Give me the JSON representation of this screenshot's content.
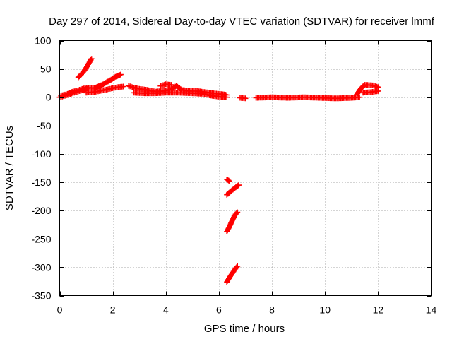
{
  "chart_data": {
    "type": "scatter",
    "title": "Day 297 of 2014, Sidereal Day-to-day VTEC variation (SDTVAR) for receiver lmmf",
    "xlabel": "GPS time / hours",
    "ylabel": "SDTVAR / TECUs",
    "xlim": [
      0,
      14
    ],
    "ylim": [
      -350,
      100
    ],
    "xticks": [
      0,
      2,
      4,
      6,
      8,
      10,
      12,
      14
    ],
    "yticks": [
      100,
      50,
      0,
      -50,
      -100,
      -150,
      -200,
      -250,
      -300,
      -350
    ],
    "grid": true,
    "marker": "+",
    "colors": {
      "points": "#ff0000",
      "grid": "#a8a8a8",
      "frame": "#000000"
    },
    "series": [
      {
        "name": "SDTVAR",
        "segments": [
          [
            [
              0,
              0
            ],
            [
              0.3,
              4
            ],
            [
              0.6,
              9
            ],
            [
              0.9,
              13
            ],
            [
              1.1,
              17
            ],
            [
              1.3,
              16
            ],
            [
              1.6,
              22
            ],
            [
              1.9,
              30
            ],
            [
              2.1,
              36
            ],
            [
              2.3,
              40
            ]
          ],
          [
            [
              0.7,
              35
            ],
            [
              0.85,
              42
            ],
            [
              1.0,
              52
            ],
            [
              1.1,
              60
            ],
            [
              1.2,
              68
            ]
          ],
          [
            [
              0.05,
              3
            ],
            [
              0.3,
              6
            ],
            [
              0.5,
              10
            ],
            [
              0.8,
              14
            ],
            [
              1.0,
              17
            ]
          ],
          [
            [
              1.0,
              8
            ],
            [
              1.4,
              10
            ],
            [
              1.8,
              14
            ],
            [
              2.2,
              18
            ],
            [
              2.4,
              19
            ]
          ],
          [
            [
              2.6,
              20
            ],
            [
              2.8,
              17
            ],
            [
              3.0,
              15
            ],
            [
              3.3,
              13
            ],
            [
              3.6,
              10
            ],
            [
              3.9,
              11
            ],
            [
              4.2,
              14
            ],
            [
              4.4,
              20
            ],
            [
              4.6,
              13
            ],
            [
              4.9,
              11
            ],
            [
              5.2,
              11
            ],
            [
              5.5,
              9
            ],
            [
              5.8,
              7
            ],
            [
              6.0,
              6
            ],
            [
              6.2,
              5
            ],
            [
              6.3,
              4
            ]
          ],
          [
            [
              2.8,
              8
            ],
            [
              3.2,
              7
            ],
            [
              3.6,
              7
            ],
            [
              4.0,
              8
            ],
            [
              4.5,
              8
            ],
            [
              5.0,
              7
            ],
            [
              5.4,
              6
            ],
            [
              5.7,
              3
            ],
            [
              6.0,
              1
            ],
            [
              6.3,
              0
            ]
          ],
          [
            [
              3.8,
              20
            ],
            [
              4.0,
              23
            ],
            [
              4.2,
              22
            ]
          ],
          [
            [
              6.8,
              -1
            ],
            [
              7.0,
              -2
            ]
          ],
          [
            [
              7.4,
              -1
            ],
            [
              8.0,
              0
            ],
            [
              8.6,
              -1
            ],
            [
              9.2,
              0
            ],
            [
              9.8,
              -1
            ],
            [
              10.4,
              -2
            ],
            [
              11.0,
              -1
            ],
            [
              11.3,
              0
            ]
          ],
          [
            [
              11.2,
              5
            ],
            [
              11.3,
              12
            ],
            [
              11.4,
              18
            ],
            [
              11.5,
              22
            ],
            [
              11.8,
              21
            ],
            [
              12.0,
              18
            ]
          ],
          [
            [
              11.4,
              8
            ],
            [
              11.7,
              9
            ],
            [
              12.0,
              11
            ]
          ],
          [
            [
              6.3,
              -145
            ],
            [
              6.4,
              -148
            ]
          ],
          [
            [
              6.3,
              -172
            ],
            [
              6.45,
              -166
            ],
            [
              6.6,
              -160
            ],
            [
              6.75,
              -155
            ]
          ],
          [
            [
              6.3,
              -237
            ],
            [
              6.4,
              -228
            ],
            [
              6.5,
              -218
            ],
            [
              6.6,
              -208
            ],
            [
              6.7,
              -203
            ]
          ],
          [
            [
              6.3,
              -326
            ],
            [
              6.4,
              -318
            ],
            [
              6.5,
              -311
            ],
            [
              6.6,
              -304
            ],
            [
              6.7,
              -298
            ]
          ]
        ]
      }
    ]
  }
}
